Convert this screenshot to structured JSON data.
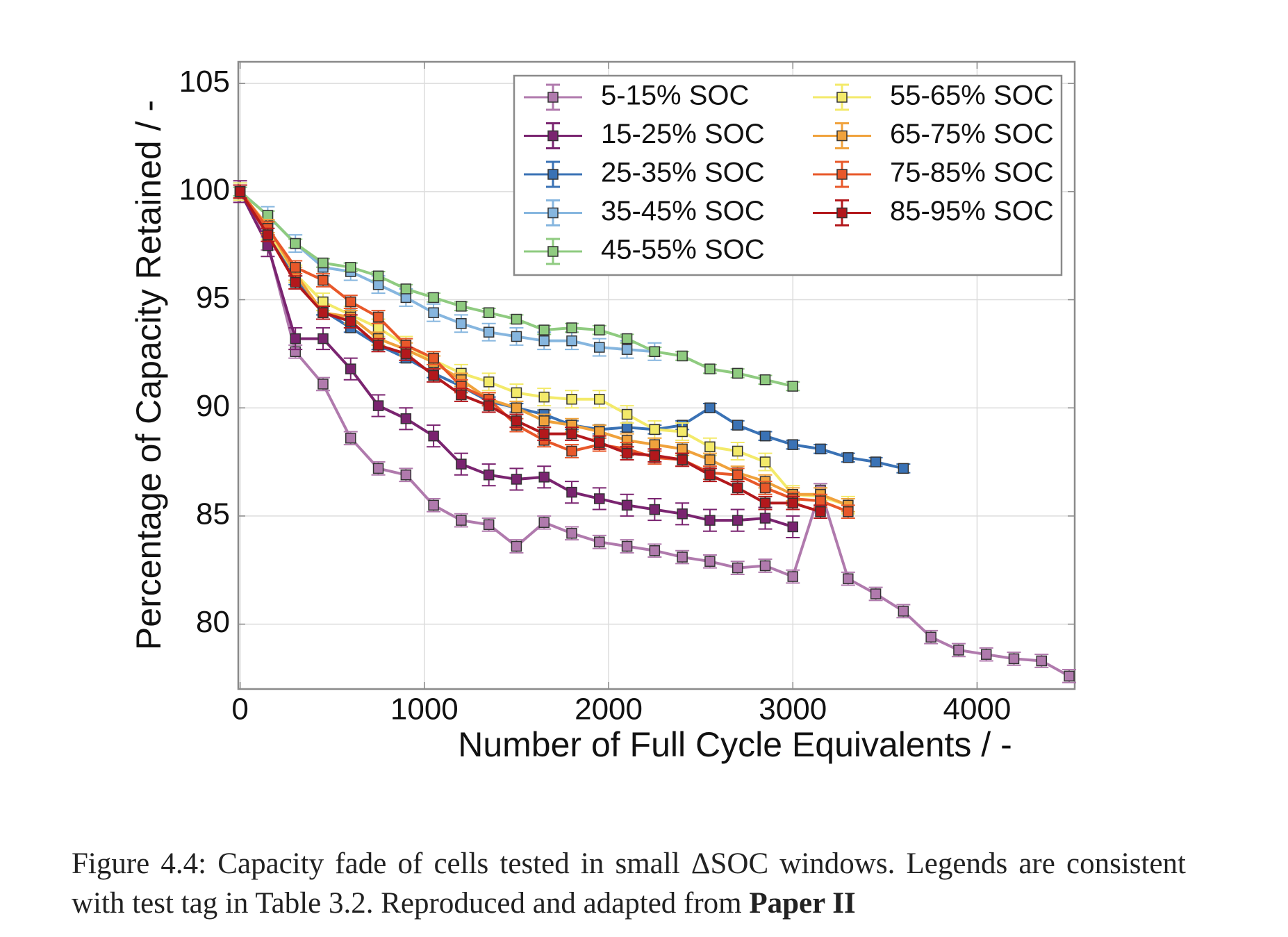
{
  "chart_data": {
    "type": "line",
    "xlabel": "Number of Full Cycle Equivalents / -",
    "ylabel": "Percentage of Capacity Retained / -",
    "x": [
      0,
      150,
      300,
      450,
      600,
      750,
      900,
      1050,
      1200,
      1350,
      1500,
      1650,
      1800,
      1950,
      2100,
      2250,
      2400,
      2550,
      2700,
      2850,
      3000,
      3150,
      3300,
      3450,
      3600,
      3750,
      3900,
      4050,
      4200,
      4350,
      4500
    ],
    "xlim": [
      -10,
      4530
    ],
    "ylim": [
      77,
      106
    ],
    "xticks": [
      0,
      1000,
      2000,
      3000,
      4000
    ],
    "yticks": [
      80,
      85,
      90,
      95,
      100,
      105
    ],
    "grid": true,
    "legend": "upper right",
    "series": [
      {
        "name": "5-15% SOC",
        "color": "#b07aad",
        "error": 0.3,
        "values": [
          100,
          97.6,
          92.6,
          91.1,
          88.6,
          87.2,
          86.9,
          85.5,
          84.8,
          84.6,
          83.6,
          84.7,
          84.2,
          83.8,
          83.6,
          83.4,
          83.1,
          82.9,
          82.6,
          82.7,
          82.2,
          86.2,
          82.1,
          81.4,
          80.6,
          79.4,
          78.8,
          78.6,
          78.4,
          78.3,
          77.6
        ]
      },
      {
        "name": "15-25% SOC",
        "color": "#7a2470",
        "error": 0.5,
        "values": [
          100,
          97.5,
          93.2,
          93.2,
          91.8,
          90.1,
          89.5,
          88.7,
          87.4,
          86.9,
          86.7,
          86.8,
          86.1,
          85.8,
          85.5,
          85.3,
          85.1,
          84.8,
          84.8,
          84.9,
          84.5,
          null,
          null,
          null,
          null,
          null,
          null,
          null,
          null,
          null,
          null
        ]
      },
      {
        "name": "25-35% SOC",
        "color": "#3a72b5",
        "error": 0.2,
        "values": [
          100,
          98.3,
          95.9,
          94.5,
          93.7,
          92.9,
          92.3,
          91.6,
          91.0,
          90.3,
          90.0,
          89.7,
          89.2,
          89.0,
          89.1,
          89.0,
          89.2,
          90.0,
          89.2,
          88.7,
          88.3,
          88.1,
          87.7,
          87.5,
          87.2,
          null,
          null,
          null,
          null,
          null,
          null
        ]
      },
      {
        "name": "35-45% SOC",
        "color": "#86b6df",
        "error": 0.4,
        "values": [
          100,
          98.9,
          97.6,
          96.5,
          96.3,
          95.7,
          95.1,
          94.4,
          93.9,
          93.5,
          93.3,
          93.1,
          93.1,
          92.8,
          92.7,
          92.6,
          null,
          null,
          null,
          null,
          null,
          null,
          null,
          null,
          null,
          null,
          null,
          null,
          null,
          null,
          null
        ]
      },
      {
        "name": "45-55% SOC",
        "color": "#8fcb80",
        "error": 0.2,
        "values": [
          100,
          98.9,
          97.6,
          96.7,
          96.5,
          96.1,
          95.5,
          95.1,
          94.7,
          94.4,
          94.1,
          93.6,
          93.7,
          93.6,
          93.2,
          92.6,
          92.4,
          91.8,
          91.6,
          91.3,
          91.0,
          null,
          null,
          null,
          null,
          null,
          null,
          null,
          null,
          null,
          null
        ]
      },
      {
        "name": "55-65% SOC",
        "color": "#f3ea6a",
        "error": 0.4,
        "values": [
          100,
          98.2,
          96.2,
          94.9,
          94.3,
          93.7,
          92.9,
          92.2,
          91.6,
          91.2,
          90.7,
          90.5,
          90.4,
          90.4,
          89.7,
          89.0,
          88.9,
          88.2,
          88.0,
          87.5,
          86.0,
          85.9,
          85.5,
          null,
          null,
          null,
          null,
          null,
          null,
          null,
          null
        ]
      },
      {
        "name": "65-75% SOC",
        "color": "#f0a23c",
        "error": 0.3,
        "values": [
          100,
          98.4,
          96.2,
          94.4,
          94.2,
          93.2,
          92.7,
          92.1,
          91.3,
          90.4,
          90.0,
          89.4,
          89.2,
          88.9,
          88.5,
          88.3,
          88.1,
          87.6,
          87.0,
          86.6,
          86.0,
          86.0,
          85.5,
          null,
          null,
          null,
          null,
          null,
          null,
          null,
          null
        ]
      },
      {
        "name": "75-85% SOC",
        "color": "#e8582a",
        "error": 0.3,
        "values": [
          100,
          98.3,
          96.5,
          95.9,
          94.9,
          94.2,
          92.9,
          92.3,
          91.0,
          90.4,
          89.2,
          88.5,
          88.0,
          88.3,
          88.1,
          87.7,
          87.6,
          87.0,
          86.9,
          86.3,
          85.8,
          85.7,
          85.2,
          null,
          null,
          null,
          null,
          null,
          null,
          null,
          null
        ]
      },
      {
        "name": "85-95% SOC",
        "color": "#b3181c",
        "error": 0.3,
        "values": [
          100,
          98.0,
          95.8,
          94.4,
          94.0,
          92.9,
          92.5,
          91.5,
          90.6,
          90.1,
          89.4,
          88.8,
          88.8,
          88.4,
          87.9,
          87.8,
          87.6,
          86.9,
          86.3,
          85.6,
          85.6,
          85.2,
          null,
          null,
          null,
          null,
          null,
          null,
          null,
          null,
          null
        ]
      }
    ]
  },
  "caption": {
    "text": "Figure 4.4: Capacity fade of cells tested in small ΔSOC windows. Legends are consistent with test tag in Table 3.2. Reproduced and adapted from",
    "bold": "Paper II"
  }
}
